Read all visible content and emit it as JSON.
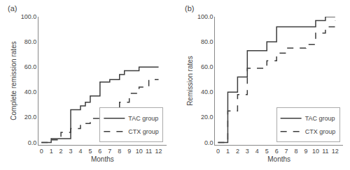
{
  "chart_data": [
    {
      "type": "step",
      "annotations": [
        "(a)"
      ],
      "x_label": "Months",
      "y_label": "Complete remission rates",
      "xlim": [
        -0.3,
        12.8
      ],
      "ylim": [
        -2,
        100
      ],
      "xticks": [
        0,
        1,
        2,
        3,
        4,
        5,
        6,
        7,
        8,
        9,
        10,
        11,
        12
      ],
      "yticks": [
        {
          "value": 0,
          "label": "0.0"
        },
        {
          "value": 20,
          "label": "20.0"
        },
        {
          "value": 40,
          "label": "40.0"
        },
        {
          "value": 60,
          "label": "60.0"
        },
        {
          "value": 80,
          "label": "80.0"
        },
        {
          "value": 100,
          "label": "100.0"
        }
      ],
      "grid": false,
      "legend": "lower right",
      "series": [
        {
          "name": "TAC group",
          "color": "#3c3c3c",
          "line_style": "solid",
          "x": [
            0,
            1,
            1.5,
            3,
            4,
            4.5,
            5,
            6,
            7,
            8,
            8.5,
            10,
            12
          ],
          "values": [
            0,
            3,
            3,
            26,
            29,
            32,
            37,
            48,
            50,
            54,
            57,
            60,
            60
          ]
        },
        {
          "name": "CTX group",
          "color": "#3c3c3c",
          "line_style": "dashed",
          "x": [
            0,
            1,
            2,
            3,
            4,
            5,
            6,
            8,
            9,
            10,
            11,
            12
          ],
          "values": [
            0,
            2,
            8,
            11,
            15,
            19,
            20,
            32,
            39,
            44,
            50,
            50
          ]
        }
      ]
    },
    {
      "type": "step",
      "annotations": [
        "(b)"
      ],
      "x_label": "Months",
      "y_label": "Remission rates",
      "xlim": [
        -0.3,
        12.8
      ],
      "ylim": [
        -2,
        100
      ],
      "xticks": [
        0,
        1,
        2,
        3,
        4,
        5,
        6,
        7,
        8,
        9,
        10,
        11,
        12
      ],
      "yticks": [
        {
          "value": 0,
          "label": "0.0"
        },
        {
          "value": 20,
          "label": "20.0"
        },
        {
          "value": 40,
          "label": "40.0"
        },
        {
          "value": 60,
          "label": "60.0"
        },
        {
          "value": 80,
          "label": "80.0"
        },
        {
          "value": 100,
          "label": "100.0"
        }
      ],
      "grid": false,
      "legend": "lower right",
      "series": [
        {
          "name": "TAC group",
          "color": "#3c3c3c",
          "line_style": "solid",
          "x": [
            0,
            1,
            2,
            3,
            5,
            6,
            10,
            11,
            12
          ],
          "values": [
            0,
            40,
            52,
            73,
            80,
            92,
            97,
            100,
            100
          ]
        },
        {
          "name": "CTX group",
          "color": "#3c3c3c",
          "line_style": "dashed",
          "x": [
            0,
            1,
            2,
            3,
            5,
            6,
            7,
            9,
            10,
            11,
            12
          ],
          "values": [
            0,
            25,
            38,
            59,
            65,
            71,
            75,
            78,
            87,
            92,
            97
          ]
        }
      ]
    }
  ]
}
